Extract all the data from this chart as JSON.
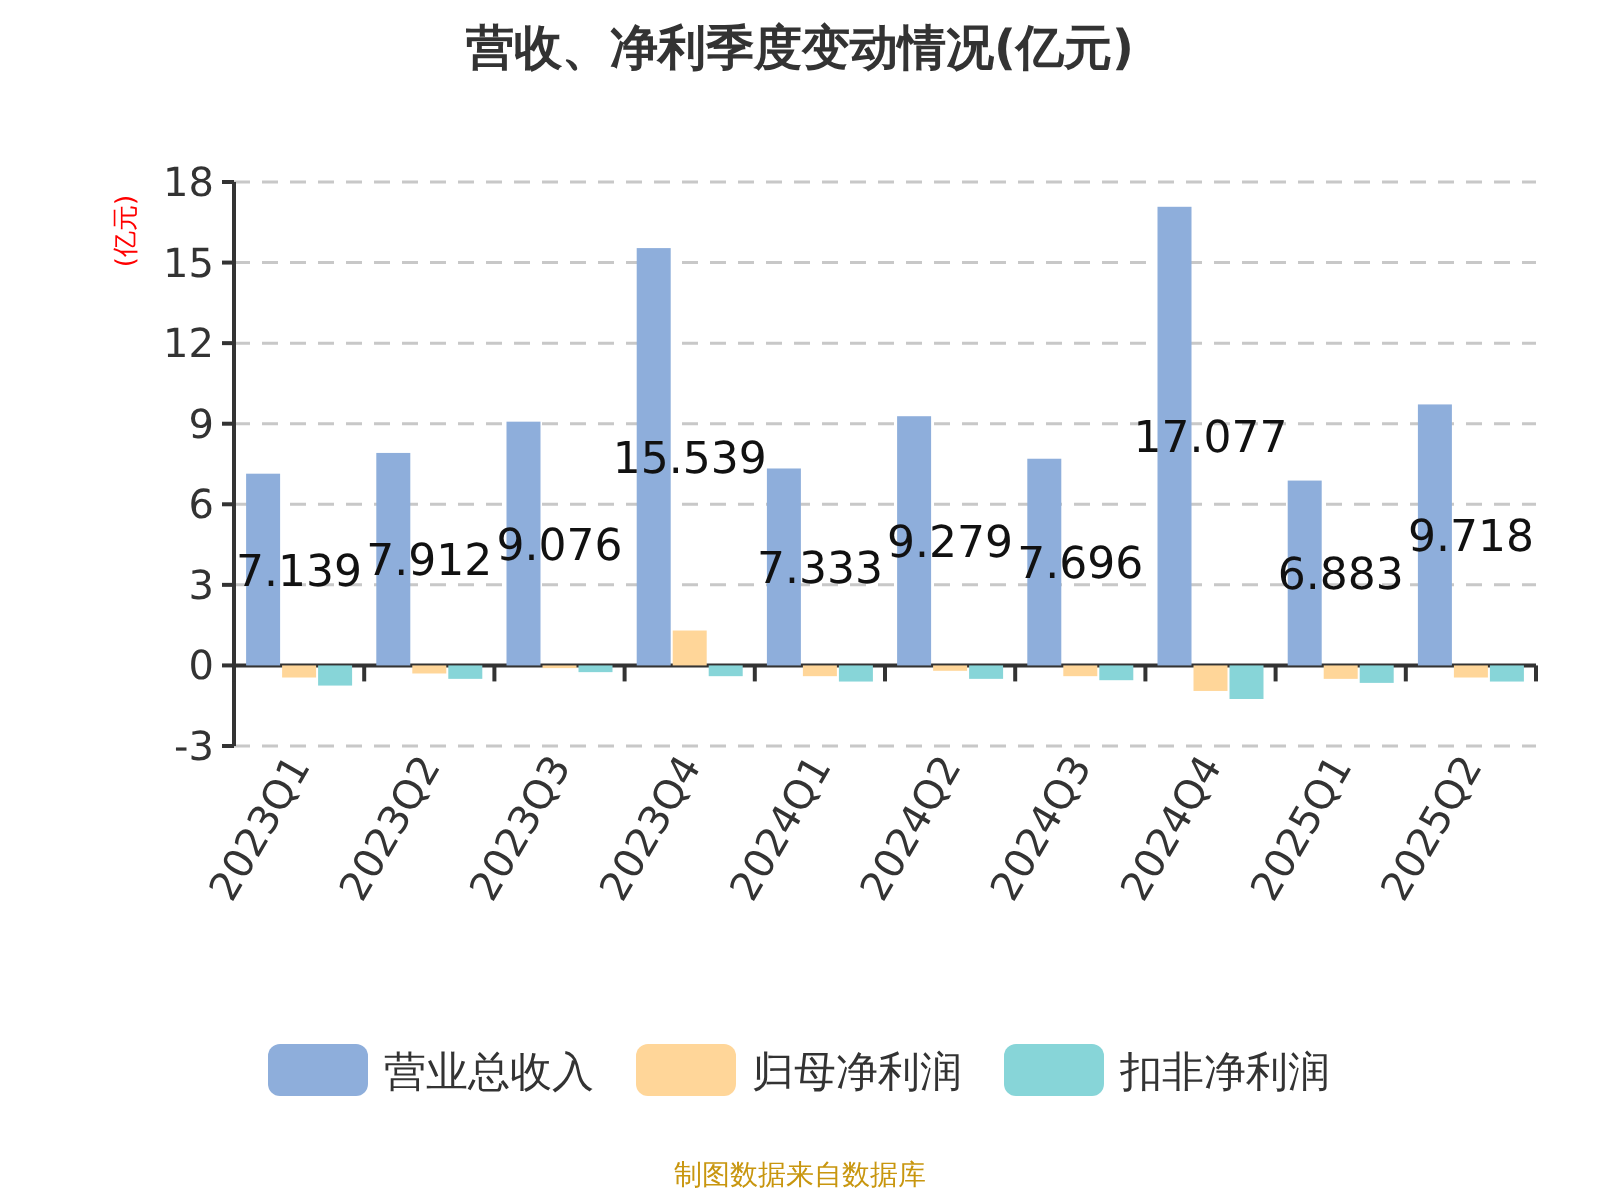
{
  "chart_data": {
    "type": "bar",
    "title": "营收、净利季度变动情况(亿元)",
    "ylabel": "(亿元)",
    "categories": [
      "2023Q1",
      "2023Q2",
      "2023Q3",
      "2023Q4",
      "2024Q1",
      "2024Q2",
      "2024Q3",
      "2024Q4",
      "2025Q1",
      "2025Q2"
    ],
    "series": [
      {
        "name": "营业总收入",
        "color": "#8eaedb",
        "values": [
          7.139,
          7.912,
          9.076,
          15.539,
          7.333,
          9.279,
          7.696,
          17.077,
          6.883,
          9.718
        ],
        "value_labels": [
          "7.139",
          "7.912",
          "9.076",
          "15.539",
          "7.333",
          "9.279",
          "7.696",
          "17.077",
          "6.883",
          "9.718"
        ]
      },
      {
        "name": "归母净利润",
        "color": "#ffd699",
        "values": [
          -0.45,
          -0.3,
          -0.1,
          1.3,
          -0.4,
          -0.2,
          -0.4,
          -0.95,
          -0.5,
          -0.45
        ]
      },
      {
        "name": "扣非净利润",
        "color": "#87d5d8",
        "values": [
          -0.75,
          -0.5,
          -0.25,
          -0.4,
          -0.6,
          -0.5,
          -0.55,
          -1.25,
          -0.65,
          -0.6
        ]
      }
    ],
    "ylim": [
      -3,
      18
    ],
    "yticks": [
      -3,
      0,
      3,
      6,
      9,
      12,
      15,
      18
    ],
    "grid": "y",
    "legend": "bottom",
    "annotations": [
      "制图数据来自数据库"
    ]
  }
}
